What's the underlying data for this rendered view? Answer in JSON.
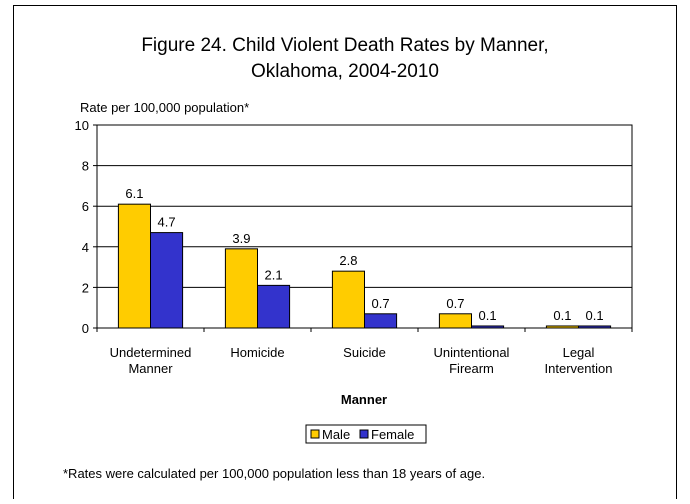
{
  "chart_data": {
    "type": "bar",
    "title_line1": "Figure 24. Child Violent Death Rates by Manner,",
    "title_line2": "Oklahoma, 2004-2010",
    "ylabel": "Rate per 100,000 population*",
    "xlabel": "Manner",
    "ylim": [
      0,
      10
    ],
    "yticks": [
      0,
      2,
      4,
      6,
      8,
      10
    ],
    "grid": true,
    "legend_position": "bottom",
    "categories": [
      [
        "Undetermined",
        "Manner"
      ],
      [
        "Homicide"
      ],
      [
        "Suicide"
      ],
      [
        "Unintentional",
        "Firearm"
      ],
      [
        "Legal",
        "Intervention"
      ]
    ],
    "series": [
      {
        "name": "Male",
        "color": "#ffcc00",
        "values": [
          6.1,
          3.9,
          2.8,
          0.7,
          0.1
        ],
        "labels": [
          "6.1",
          "3.9",
          "2.8",
          "0.7",
          "0.1"
        ]
      },
      {
        "name": "Female",
        "color": "#3333cc",
        "values": [
          4.7,
          2.1,
          0.7,
          0.1,
          0.1
        ],
        "labels": [
          "4.7",
          "2.1",
          "0.7",
          "0.1",
          "0.1"
        ]
      }
    ],
    "footnote": "*Rates were calculated per 100,000 population less than 18 years of age."
  }
}
